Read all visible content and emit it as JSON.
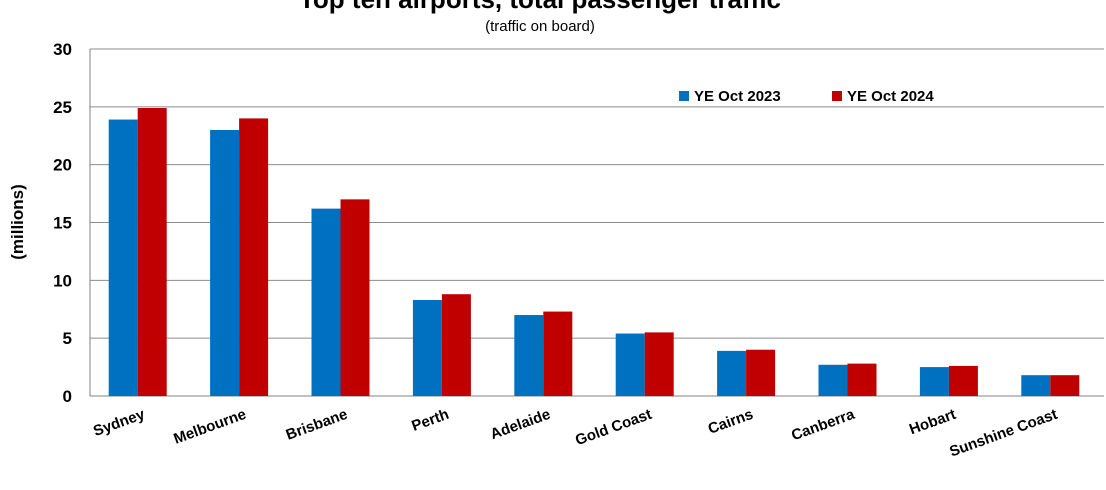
{
  "chart_data": {
    "type": "bar",
    "title": "Top ten airports, total passenger traffic",
    "subtitle": "(traffic on board)",
    "xlabel": "",
    "ylabel": "(millions)",
    "ylim": [
      0,
      30
    ],
    "yticks": [
      0,
      5,
      10,
      15,
      20,
      25,
      30
    ],
    "grid": true,
    "legend_position": "top-right",
    "categories": [
      "Sydney",
      "Melbourne",
      "Brisbane",
      "Perth",
      "Adelaide",
      "Gold Coast",
      "Cairns",
      "Canberra",
      "Hobart",
      "Sunshine Coast"
    ],
    "series": [
      {
        "name": "YE Oct 2023",
        "color": "#0070C0",
        "values": [
          23.9,
          23.0,
          16.2,
          8.3,
          7.0,
          5.4,
          3.9,
          2.7,
          2.5,
          1.8
        ]
      },
      {
        "name": "YE Oct 2024",
        "color": "#C00000",
        "values": [
          24.9,
          24.0,
          17.0,
          8.8,
          7.3,
          5.5,
          4.0,
          2.8,
          2.6,
          1.8
        ]
      }
    ]
  }
}
